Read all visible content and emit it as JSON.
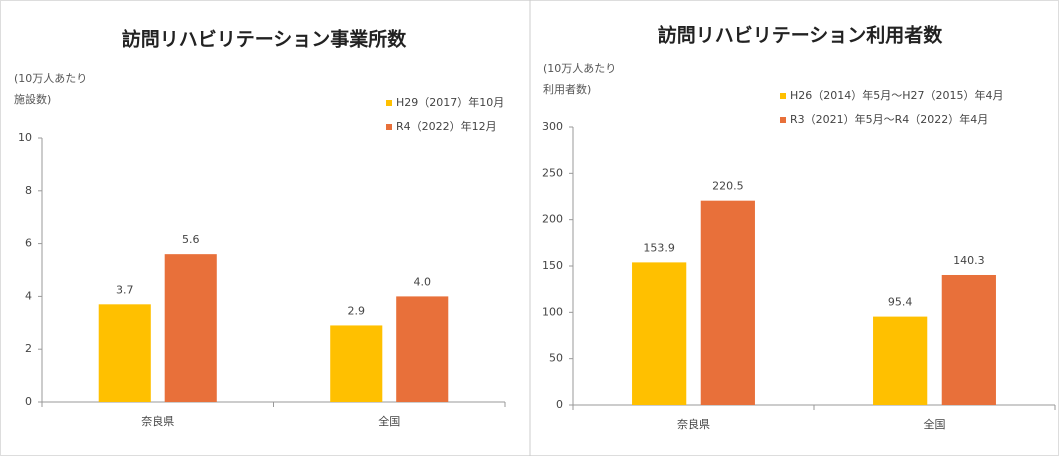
{
  "chart_data": [
    {
      "type": "bar",
      "title": "訪問リハビリテーション事業所数",
      "ylabel": "(10万人あたり施設数)",
      "categories": [
        "奈良県",
        "全国"
      ],
      "series": [
        {
          "name": "H29（2017）年10月",
          "color": "#FFC000",
          "values": [
            3.7,
            2.9
          ],
          "value_labels": [
            "3.7",
            "2.9"
          ]
        },
        {
          "name": "R4（2022）年12月",
          "color": "#E8703A",
          "values": [
            5.6,
            4.0
          ],
          "value_labels": [
            "5.6",
            "4.0"
          ]
        }
      ],
      "ylim": [
        0,
        10
      ],
      "yticks": [
        0,
        2,
        4,
        6,
        8,
        10
      ],
      "grid": false
    },
    {
      "type": "bar",
      "title": "訪問リハビリテーション利用者数",
      "ylabel": "(10万人あたり利用者数)",
      "categories": [
        "奈良県",
        "全国"
      ],
      "series": [
        {
          "name": "H26（2014）年5月～H27（2015）年4月",
          "color": "#FFC000",
          "values": [
            153.9,
            95.4
          ],
          "value_labels": [
            "153.9",
            "95.4"
          ]
        },
        {
          "name": "R3（2021）年5月～R4（2022）年4月",
          "color": "#E8703A",
          "values": [
            220.5,
            140.3
          ],
          "value_labels": [
            "220.5",
            "140.3"
          ]
        }
      ],
      "ylim": [
        0,
        300
      ],
      "yticks": [
        0,
        50,
        100,
        150,
        200,
        250,
        300
      ],
      "grid": false
    }
  ]
}
